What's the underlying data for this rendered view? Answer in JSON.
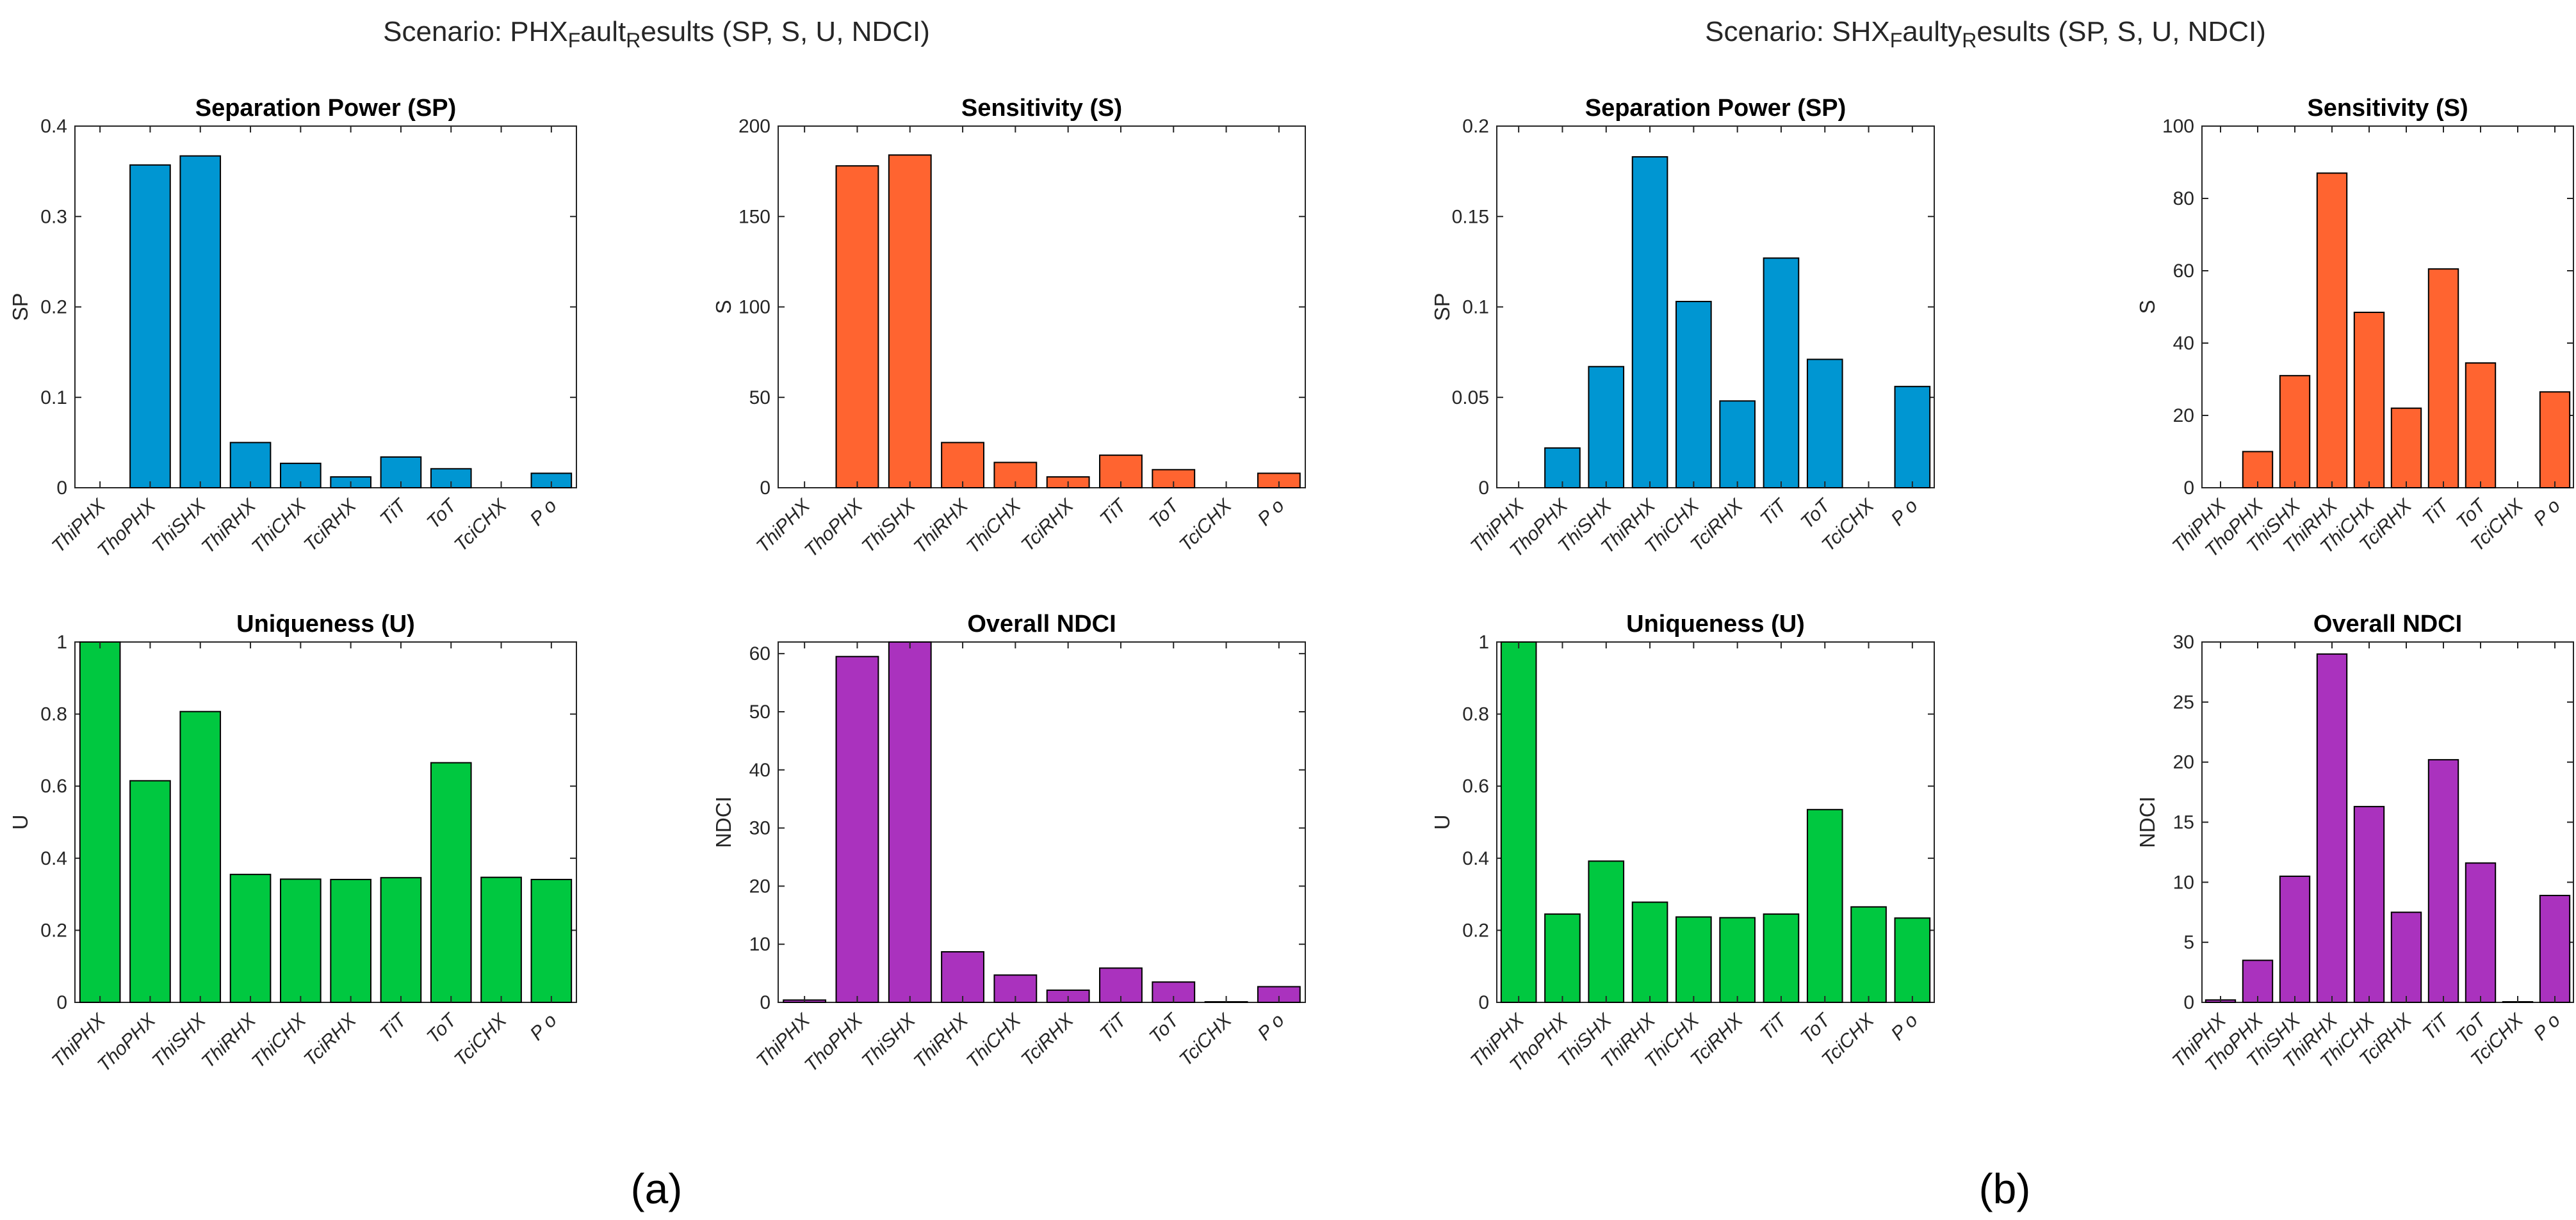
{
  "figure": {
    "panels": [
      {
        "title_main": "Scenario: PHX",
        "title_sub1": "F",
        "title_mid": "ault",
        "title_sub2": "R",
        "title_rest": "esults  (SP, S, U, NDCI)",
        "label": "(a)"
      },
      {
        "title_main": "Scenario: SHX",
        "title_sub1": "F",
        "title_mid": "aulty",
        "title_sub2": "R",
        "title_rest": "esults  (SP, S, U, NDCI)",
        "label": "(b)"
      }
    ]
  },
  "colors": {
    "sp": "#0096D2",
    "s": "#FF6430",
    "u": "#00C840",
    "ndci": "#AA32BE"
  },
  "chart_data": [
    {
      "type": "bar",
      "panel": "a",
      "title": "Separation Power (SP)",
      "ylabel": "SP",
      "color_key": "sp",
      "categories": [
        "ThiPHX",
        "ThoPHX",
        "ThiSHX",
        "ThiRHX",
        "ThiCHX",
        "TciRHX",
        "TiT",
        "ToT",
        "TciCHX",
        "P o"
      ],
      "values": [
        0,
        0.357,
        0.367,
        0.05,
        0.027,
        0.012,
        0.034,
        0.021,
        0,
        0.016
      ],
      "ylim": [
        0,
        0.4
      ],
      "yticks": [
        "0",
        "0.1",
        "0.2",
        "0.3",
        "0.4"
      ],
      "grid": false
    },
    {
      "type": "bar",
      "panel": "a",
      "title": "Sensitivity (S)",
      "ylabel": "S",
      "color_key": "s",
      "categories": [
        "ThiPHX",
        "ThoPHX",
        "ThiSHX",
        "ThiRHX",
        "ThiCHX",
        "TciRHX",
        "TiT",
        "ToT",
        "TciCHX",
        "P o"
      ],
      "values": [
        0,
        178,
        184,
        25,
        14,
        6,
        18,
        10,
        0,
        8
      ],
      "ylim": [
        0,
        200
      ],
      "yticks": [
        "0",
        "50",
        "100",
        "150",
        "200"
      ],
      "grid": false
    },
    {
      "type": "bar",
      "panel": "a",
      "title": "Uniqueness (U)",
      "ylabel": "U",
      "color_key": "u",
      "categories": [
        "ThiPHX",
        "ThoPHX",
        "ThiSHX",
        "ThiRHX",
        "ThiCHX",
        "TciRHX",
        "TiT",
        "ToT",
        "TciCHX",
        "P o"
      ],
      "values": [
        1.0,
        0.615,
        0.807,
        0.355,
        0.342,
        0.341,
        0.346,
        0.665,
        0.347,
        0.341
      ],
      "ylim": [
        0,
        1
      ],
      "yticks": [
        "0",
        "0.2",
        "0.4",
        "0.6",
        "0.8",
        "1"
      ],
      "grid": false
    },
    {
      "type": "bar",
      "panel": "a",
      "title": "Overall NDCI",
      "ylabel": "NDCI",
      "color_key": "ndci",
      "categories": [
        "ThiPHX",
        "ThoPHX",
        "ThiSHX",
        "ThiRHX",
        "ThiCHX",
        "TciRHX",
        "TiT",
        "ToT",
        "TciCHX",
        "P o"
      ],
      "values": [
        0.4,
        59.5,
        62.5,
        8.7,
        4.7,
        2.1,
        5.9,
        3.5,
        0.1,
        2.7
      ],
      "ylim": [
        0,
        62
      ],
      "yticks": [
        "0",
        "10",
        "20",
        "30",
        "40",
        "50",
        "60"
      ],
      "grid": false
    },
    {
      "type": "bar",
      "panel": "b",
      "title": "Separation Power (SP)",
      "ylabel": "SP",
      "color_key": "sp",
      "categories": [
        "ThiPHX",
        "ThoPHX",
        "ThiSHX",
        "ThiRHX",
        "ThiCHX",
        "TciRHX",
        "TiT",
        "ToT",
        "TciCHX",
        "P o"
      ],
      "values": [
        0,
        0.022,
        0.067,
        0.183,
        0.103,
        0.048,
        0.127,
        0.071,
        0,
        0.056
      ],
      "ylim": [
        0,
        0.2
      ],
      "yticks": [
        "0",
        "0.05",
        "0.1",
        "0.15",
        "0.2"
      ],
      "grid": false
    },
    {
      "type": "bar",
      "panel": "b",
      "title": "Sensitivity (S)",
      "ylabel": "S",
      "color_key": "s",
      "categories": [
        "ThiPHX",
        "ThoPHX",
        "ThiSHX",
        "ThiRHX",
        "ThiCHX",
        "TciRHX",
        "TiT",
        "ToT",
        "TciCHX",
        "P o"
      ],
      "values": [
        0,
        10,
        31,
        87,
        48.5,
        22,
        60.5,
        34.5,
        0,
        26.5
      ],
      "ylim": [
        0,
        100
      ],
      "yticks": [
        "0",
        "20",
        "40",
        "60",
        "80",
        "100"
      ],
      "grid": false
    },
    {
      "type": "bar",
      "panel": "b",
      "title": "Uniqueness (U)",
      "ylabel": "U",
      "color_key": "u",
      "categories": [
        "ThiPHX",
        "ThoPHX",
        "ThiSHX",
        "ThiRHX",
        "ThiCHX",
        "TciRHX",
        "TiT",
        "ToT",
        "TciCHX",
        "P o"
      ],
      "values": [
        1.0,
        0.245,
        0.392,
        0.278,
        0.237,
        0.235,
        0.245,
        0.535,
        0.265,
        0.234
      ],
      "ylim": [
        0,
        1
      ],
      "yticks": [
        "0",
        "0.2",
        "0.4",
        "0.6",
        "0.8",
        "1"
      ],
      "grid": false
    },
    {
      "type": "bar",
      "panel": "b",
      "title": "Overall NDCI",
      "ylabel": "NDCI",
      "color_key": "ndci",
      "categories": [
        "ThiPHX",
        "ThoPHX",
        "ThiSHX",
        "ThiRHX",
        "ThiCHX",
        "TciRHX",
        "TiT",
        "ToT",
        "TciCHX",
        "P o"
      ],
      "values": [
        0.2,
        3.5,
        10.5,
        29,
        16.3,
        7.5,
        20.2,
        11.6,
        0.05,
        8.9
      ],
      "ylim": [
        0,
        30
      ],
      "yticks": [
        "0",
        "5",
        "10",
        "15",
        "20",
        "25",
        "30"
      ],
      "grid": false
    }
  ]
}
